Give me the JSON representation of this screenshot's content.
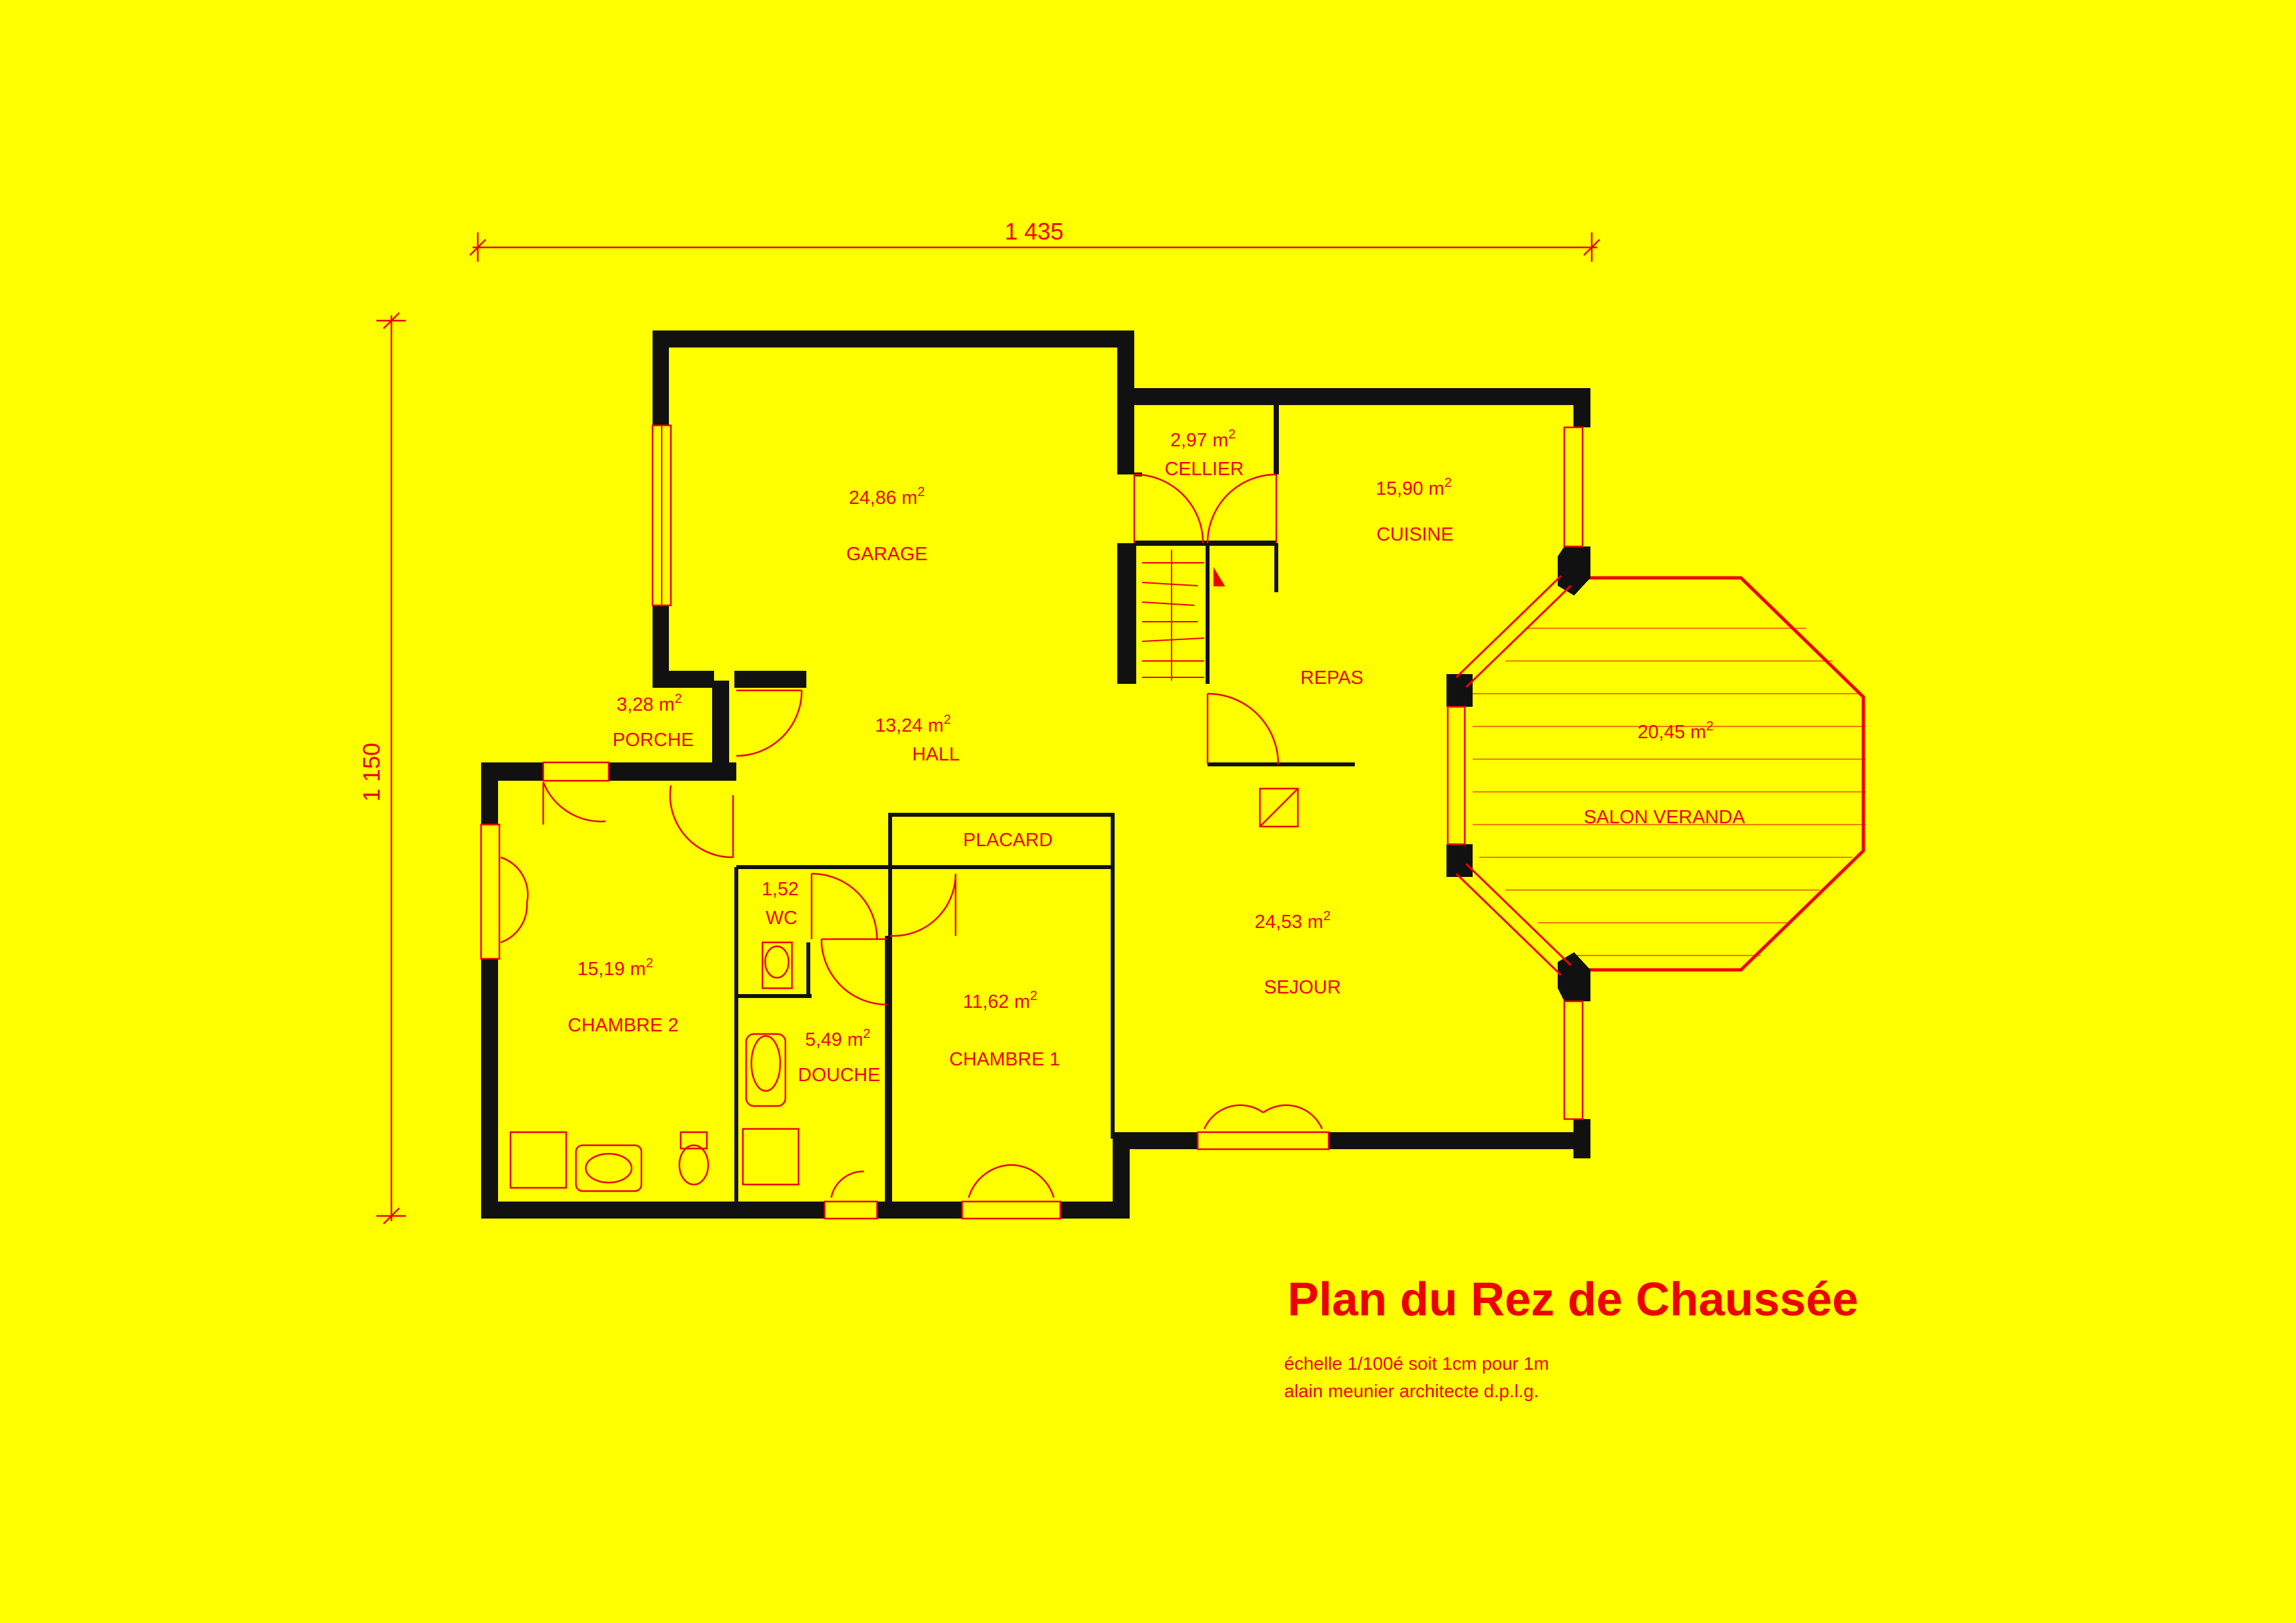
{
  "colors": {
    "background": "#ffff00",
    "wall": "#111111",
    "line": "#ee0000"
  },
  "dimensions": {
    "width": "1 435",
    "height": "1 150"
  },
  "rooms": {
    "garage": {
      "area": "24,86 m",
      "name": "GARAGE"
    },
    "cellier": {
      "area": "2,97 m",
      "name": "CELLIER"
    },
    "cuisine": {
      "area": "15,90 m",
      "name": "CUISINE"
    },
    "repas": {
      "name": "REPAS"
    },
    "porche": {
      "area": "3,28 m",
      "name": "PORCHE"
    },
    "hall": {
      "area": "13,24 m",
      "name": "HALL"
    },
    "veranda": {
      "area": "20,45 m",
      "name": "SALON VERANDA"
    },
    "placard": {
      "name": "PLACARD"
    },
    "wc": {
      "area": "1,52",
      "name": "WC"
    },
    "sejour": {
      "area": "24,53 m",
      "name": "SEJOUR"
    },
    "chambre2": {
      "area": "15,19 m",
      "name": "CHAMBRE 2"
    },
    "chambre1": {
      "area": "11,62 m",
      "name": "CHAMBRE 1"
    },
    "douche": {
      "area": "5,49 m",
      "name": "DOUCHE"
    },
    "superscript": "2"
  },
  "title": "Plan du Rez de Chaussée",
  "notes": {
    "scale": "échelle 1/100é soit 1cm pour 1m",
    "author": "alain meunier architecte d.p.l.g."
  }
}
